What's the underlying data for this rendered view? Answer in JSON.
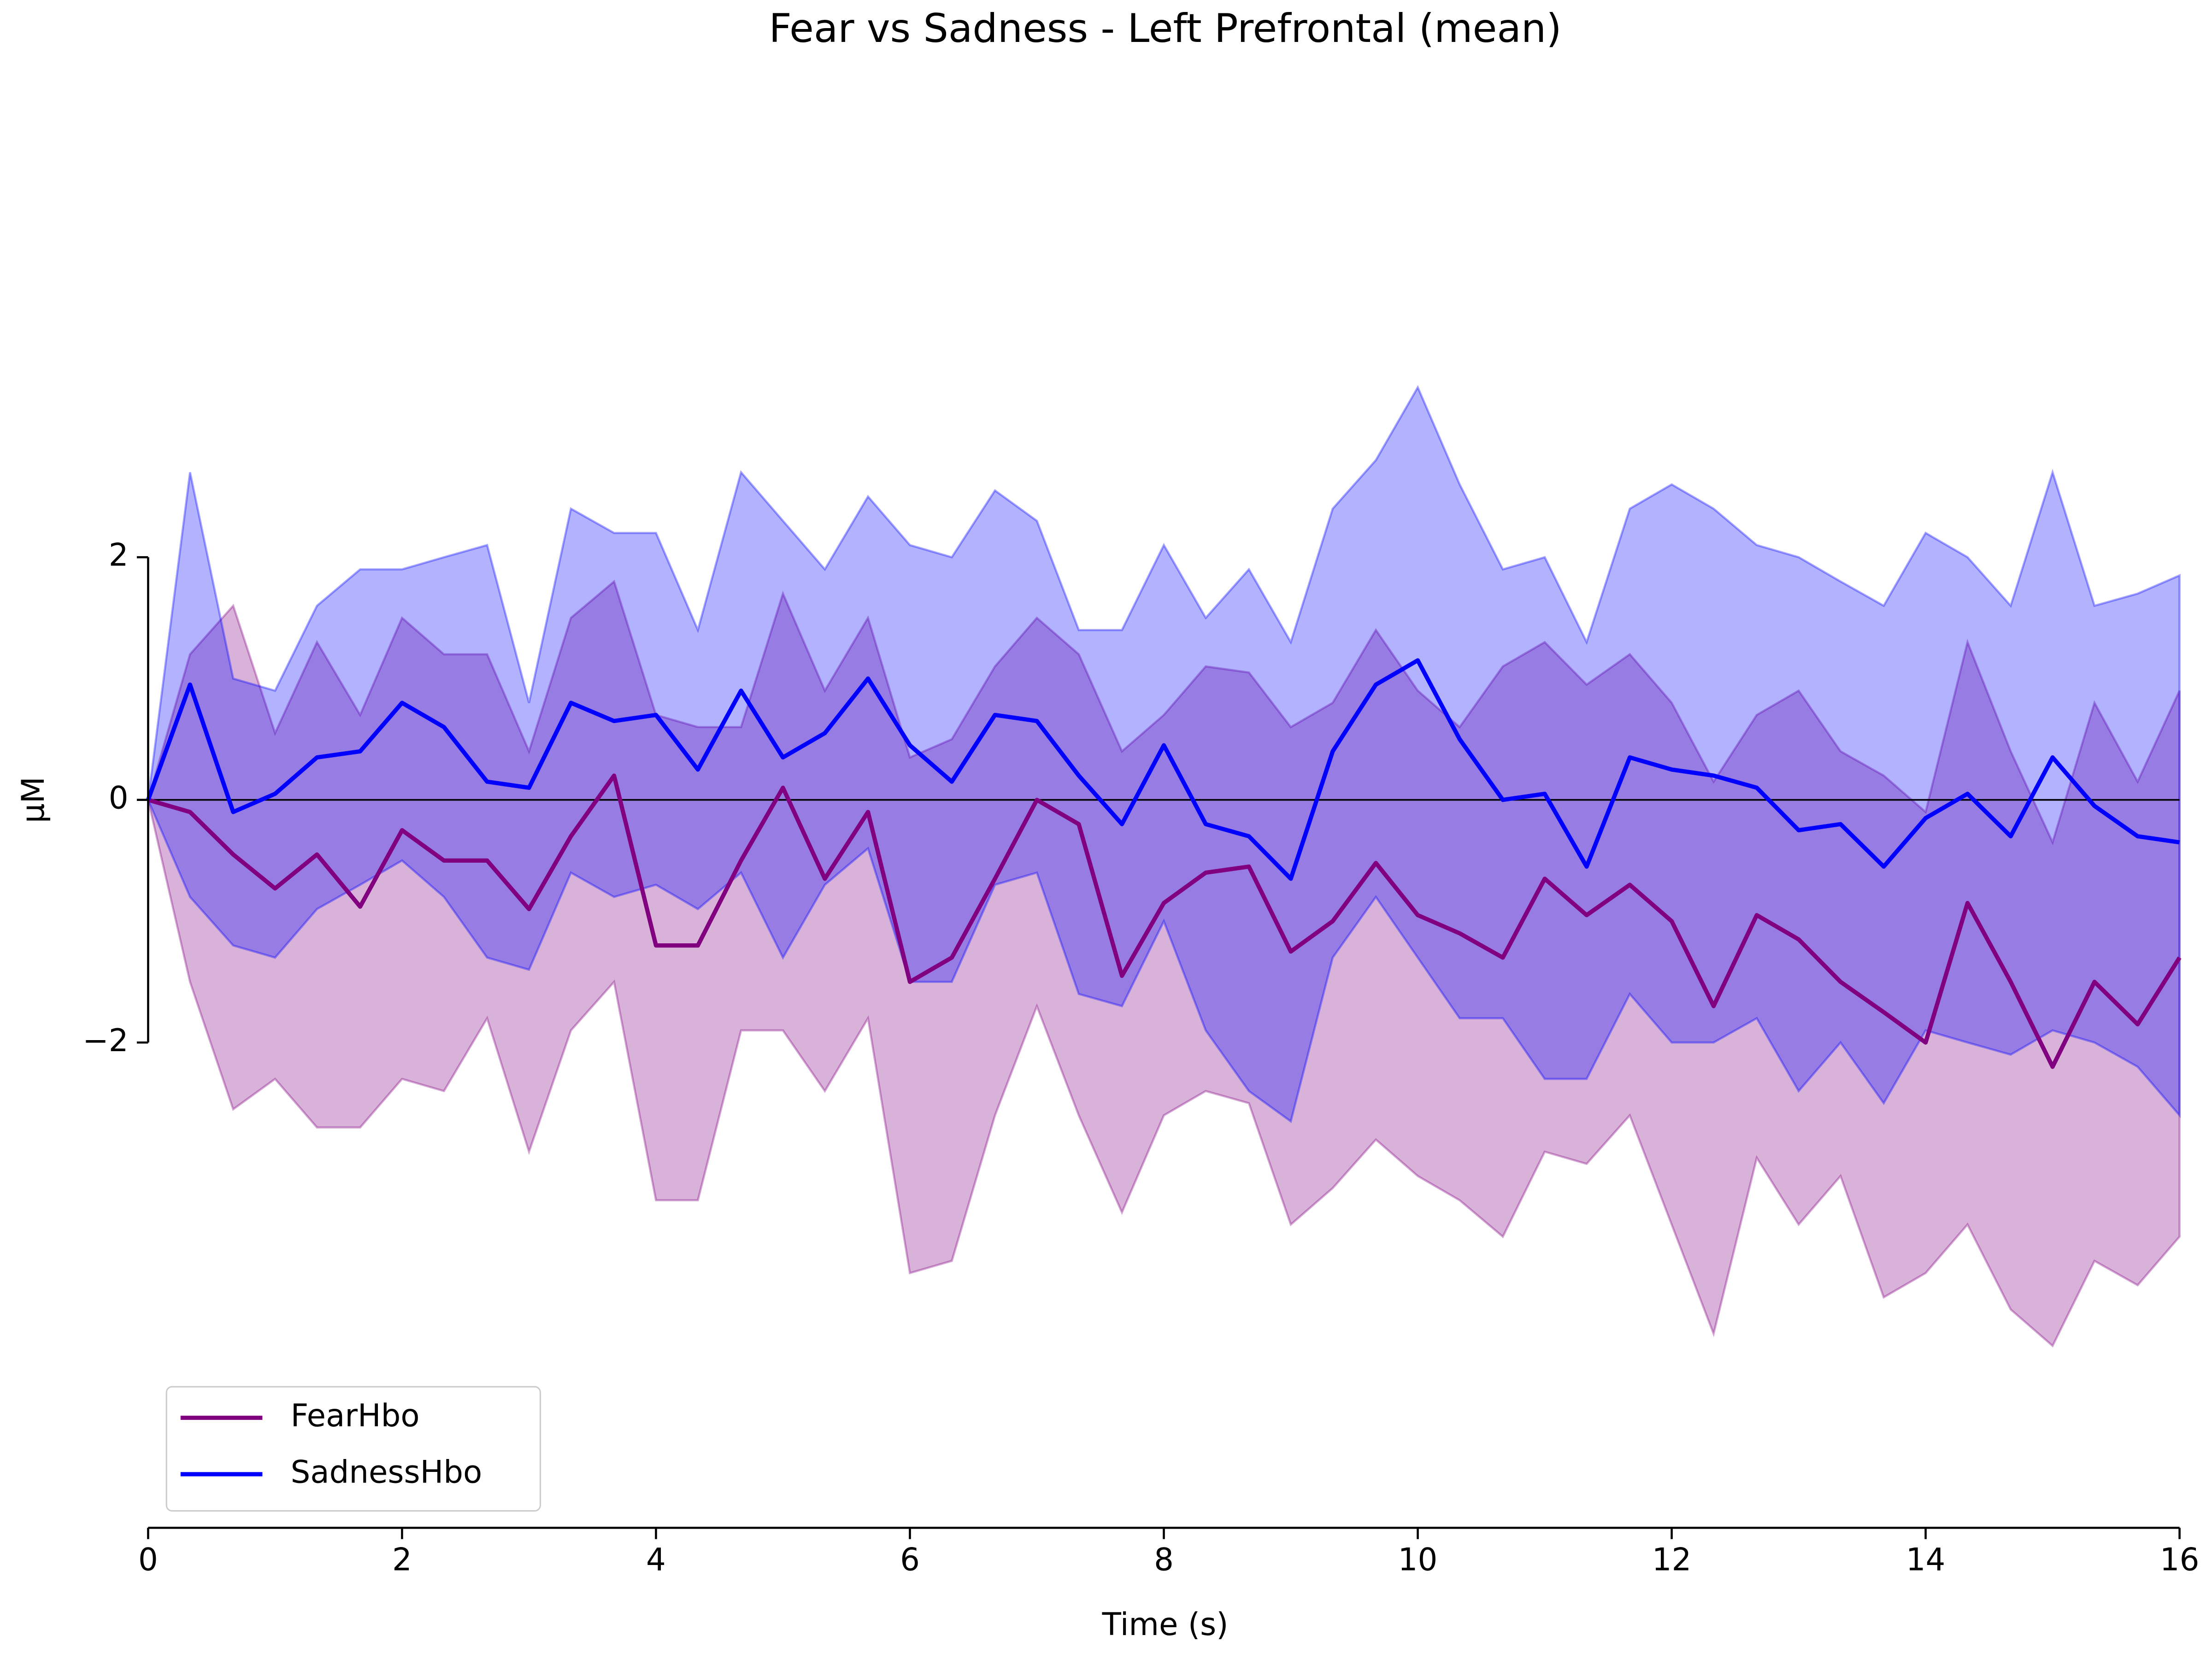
{
  "chart_data": {
    "type": "band-line",
    "title": "Fear vs Sadness - Left Prefrontal (mean)",
    "xlabel": "Time (s)",
    "ylabel": "μM",
    "x": [
      0,
      0.33,
      0.67,
      1,
      1.33,
      1.67,
      2,
      2.33,
      2.67,
      3,
      3.33,
      3.67,
      4,
      4.33,
      4.67,
      5,
      5.33,
      5.67,
      6,
      6.33,
      6.67,
      7,
      7.33,
      7.67,
      8,
      8.33,
      8.67,
      9,
      9.33,
      9.67,
      10,
      10.33,
      10.67,
      11,
      11.33,
      11.67,
      12,
      12.33,
      12.67,
      13,
      13.33,
      13.67,
      14,
      14.33,
      14.67,
      15,
      15.33,
      15.67,
      16
    ],
    "series": [
      {
        "name": "FearHbo",
        "color": "#800080",
        "values": [
          0,
          -0.1,
          -0.45,
          -0.73,
          -0.45,
          -0.88,
          -0.25,
          -0.5,
          -0.5,
          -0.9,
          -0.3,
          0.2,
          -1.2,
          -1.2,
          -0.5,
          0.1,
          -0.65,
          -0.1,
          -1.5,
          -1.3,
          -0.65,
          0,
          -0.2,
          -1.45,
          -0.85,
          -0.6,
          -0.55,
          -1.25,
          -1,
          -0.52,
          -0.95,
          -1.1,
          -1.3,
          -0.65,
          -0.95,
          -0.7,
          -1,
          -1.7,
          -0.95,
          -1.15,
          -1.5,
          -1.75,
          -2,
          -0.85,
          -1.5,
          -2.2,
          -1.5,
          -1.85,
          -1.3
        ],
        "upper": [
          0,
          1.2,
          1.6,
          0.55,
          1.3,
          0.7,
          1.5,
          1.2,
          1.2,
          0.4,
          1.5,
          1.8,
          0.7,
          0.6,
          0.6,
          1.7,
          0.9,
          1.5,
          0.35,
          0.5,
          1.1,
          1.5,
          1.2,
          0.4,
          0.7,
          1.1,
          1.05,
          0.6,
          0.8,
          1.4,
          0.9,
          0.6,
          1.1,
          1.3,
          0.95,
          1.2,
          0.8,
          0.15,
          0.7,
          0.9,
          0.4,
          0.2,
          -0.1,
          1.3,
          0.4,
          -0.35,
          0.8,
          0.15,
          0.9
        ],
        "lower": [
          0,
          -1.5,
          -2.55,
          -2.3,
          -2.7,
          -2.7,
          -2.3,
          -2.4,
          -1.8,
          -2.9,
          -1.9,
          -1.5,
          -3.3,
          -3.3,
          -1.9,
          -1.9,
          -2.4,
          -1.8,
          -3.9,
          -3.8,
          -2.6,
          -1.7,
          -2.6,
          -3.4,
          -2.6,
          -2.4,
          -2.5,
          -3.5,
          -3.2,
          -2.8,
          -3.1,
          -3.3,
          -3.6,
          -2.9,
          -3,
          -2.6,
          -3.5,
          -4.4,
          -2.95,
          -3.5,
          -3.1,
          -4.1,
          -3.9,
          -3.5,
          -4.2,
          -4.5,
          -3.8,
          -4,
          -3.6
        ]
      },
      {
        "name": "SadnessHbo",
        "color": "#0000ff",
        "values": [
          0,
          0.95,
          -0.1,
          0.05,
          0.35,
          0.4,
          0.8,
          0.6,
          0.15,
          0.1,
          0.8,
          0.65,
          0.7,
          0.25,
          0.9,
          0.35,
          0.55,
          1,
          0.45,
          0.15,
          0.7,
          0.65,
          0.2,
          -0.2,
          0.45,
          -0.2,
          -0.3,
          -0.65,
          0.4,
          0.95,
          1.15,
          0.5,
          0,
          0.05,
          -0.55,
          0.35,
          0.25,
          0.2,
          0.1,
          -0.25,
          -0.2,
          -0.55,
          -0.15,
          0.05,
          -0.3,
          0.35,
          -0.05,
          -0.3,
          -0.35
        ],
        "upper": [
          0,
          2.7,
          1,
          0.9,
          1.6,
          1.9,
          1.9,
          2,
          2.1,
          0.8,
          2.4,
          2.2,
          2.2,
          1.4,
          2.7,
          2.3,
          1.9,
          2.5,
          2.1,
          2,
          2.55,
          2.3,
          1.4,
          1.4,
          2.1,
          1.5,
          1.9,
          1.3,
          2.4,
          2.8,
          3.4,
          2.6,
          1.9,
          2,
          1.3,
          2.4,
          2.6,
          2.4,
          2.1,
          2,
          1.8,
          1.6,
          2.2,
          2,
          1.6,
          2.7,
          1.6,
          1.7,
          1.85
        ],
        "lower": [
          0,
          -0.8,
          -1.2,
          -1.3,
          -0.9,
          -0.7,
          -0.5,
          -0.8,
          -1.3,
          -1.4,
          -0.6,
          -0.8,
          -0.7,
          -0.9,
          -0.6,
          -1.3,
          -0.7,
          -0.4,
          -1.5,
          -1.5,
          -0.7,
          -0.6,
          -1.6,
          -1.7,
          -1,
          -1.9,
          -2.4,
          -2.65,
          -1.3,
          -0.8,
          -1.3,
          -1.8,
          -1.8,
          -2.3,
          -2.3,
          -1.6,
          -2,
          -2,
          -1.8,
          -2.4,
          -2,
          -2.5,
          -1.9,
          -2,
          -2.1,
          -1.9,
          -2,
          -2.2,
          -2.6
        ]
      }
    ],
    "xlim": [
      0,
      16
    ],
    "xticks": [
      0,
      2,
      4,
      6,
      8,
      10,
      12,
      14,
      16
    ],
    "ylim": [
      -6,
      3.6
    ],
    "yticks": [
      {
        "value": -2,
        "label": "−2"
      },
      0,
      2
    ],
    "hline": 0,
    "legend": "lower left",
    "grid": false
  }
}
